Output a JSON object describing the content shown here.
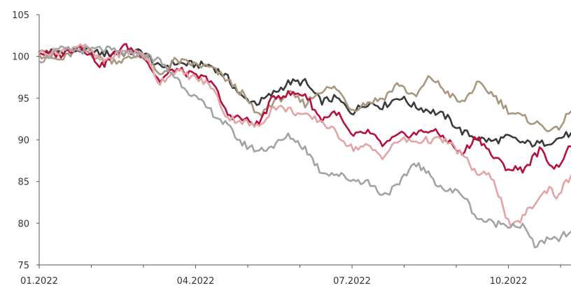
{
  "chart_data": {
    "type": "line",
    "title": "",
    "xlabel": "",
    "ylabel": "",
    "ylim": [
      75,
      105
    ],
    "yticks": [
      75,
      80,
      85,
      90,
      95,
      100,
      105
    ],
    "xticks": [
      {
        "label": "01.2022",
        "x": 0
      },
      {
        "label": "04.2022",
        "x": 3
      },
      {
        "label": "07.2022",
        "x": 6
      },
      {
        "label": "10.2022",
        "x": 9
      }
    ],
    "xminor": [
      1,
      2,
      4,
      5,
      7,
      8,
      10
    ],
    "xlim": [
      0,
      10.2
    ],
    "grid": false,
    "legend": "none",
    "series": [
      {
        "color": "#3a3a3a",
        "x": [
          0,
          0.4,
          0.8,
          1.2,
          1.6,
          2.0,
          2.3,
          2.6,
          3.0,
          3.3,
          3.6,
          3.9,
          4.2,
          4.5,
          4.8,
          5.1,
          5.4,
          5.7,
          6.0,
          6.3,
          6.6,
          6.9,
          7.2,
          7.5,
          7.8,
          8.1,
          8.4,
          8.7,
          9.0,
          9.3,
          9.6,
          9.9,
          10.2
        ],
        "values": [
          100.5,
          100.6,
          100.8,
          100.3,
          100.4,
          100.6,
          98.6,
          99.2,
          99.0,
          98.9,
          97.5,
          95.0,
          94.4,
          95.6,
          96.9,
          96.9,
          94.6,
          95.0,
          93.3,
          94.5,
          94.0,
          95.2,
          94.0,
          93.5,
          92.8,
          91.0,
          90.2,
          89.8,
          90.3,
          89.6,
          89.5,
          90.0,
          90.8
        ]
      },
      {
        "color": "#a8977c",
        "x": [
          0,
          0.4,
          0.8,
          1.2,
          1.6,
          2.0,
          2.3,
          2.6,
          3.0,
          3.3,
          3.6,
          3.9,
          4.2,
          4.5,
          4.8,
          5.1,
          5.4,
          5.7,
          6.0,
          6.3,
          6.6,
          6.9,
          7.2,
          7.5,
          7.8,
          8.1,
          8.4,
          8.7,
          9.0,
          9.3,
          9.6,
          9.9,
          10.2
        ],
        "values": [
          100.2,
          99.5,
          101.0,
          99.6,
          99.5,
          100.3,
          97.6,
          99.5,
          99.0,
          98.6,
          97.2,
          95.5,
          92.8,
          94.6,
          95.5,
          94.3,
          96.0,
          96.2,
          93.6,
          94.5,
          95.0,
          96.8,
          95.0,
          97.6,
          95.8,
          94.3,
          96.7,
          95.5,
          93.5,
          92.6,
          91.8,
          91.0,
          93.4
        ]
      },
      {
        "color": "#b8103e",
        "x": [
          0,
          0.4,
          0.8,
          1.2,
          1.6,
          2.0,
          2.3,
          2.6,
          3.0,
          3.3,
          3.6,
          3.9,
          4.2,
          4.5,
          4.8,
          5.1,
          5.4,
          5.7,
          6.0,
          6.3,
          6.6,
          6.9,
          7.2,
          7.5,
          7.8,
          8.1,
          8.4,
          8.7,
          9.0,
          9.3,
          9.6,
          9.9,
          10.2
        ],
        "values": [
          100.4,
          100.2,
          101.3,
          98.8,
          101.3,
          100.2,
          97.0,
          98.5,
          97.6,
          97.2,
          93.1,
          92.5,
          91.8,
          95.2,
          95.5,
          95.5,
          92.4,
          93.4,
          90.3,
          91.0,
          89.3,
          90.5,
          90.7,
          91.2,
          90.2,
          88.2,
          90.5,
          88.0,
          86.5,
          86.5,
          88.8,
          86.5,
          89.2
        ]
      },
      {
        "color": "#e2a4a4",
        "x": [
          0,
          0.4,
          0.8,
          1.2,
          1.6,
          2.0,
          2.3,
          2.6,
          3.0,
          3.3,
          3.6,
          3.9,
          4.2,
          4.5,
          4.8,
          5.1,
          5.4,
          5.7,
          6.0,
          6.3,
          6.6,
          6.9,
          7.2,
          7.5,
          7.8,
          8.1,
          8.4,
          8.7,
          9.0,
          9.1,
          9.3,
          9.6,
          9.8,
          9.9,
          10.2
        ],
        "values": [
          100.4,
          100.6,
          101.5,
          99.4,
          100.5,
          100.4,
          96.8,
          98.3,
          97.4,
          96.5,
          92.7,
          92.2,
          91.5,
          94.0,
          93.6,
          92.8,
          92.3,
          90.8,
          89.0,
          89.2,
          88.0,
          90.0,
          89.8,
          90.0,
          89.9,
          88.3,
          85.9,
          85.6,
          80.0,
          79.5,
          81.0,
          83.0,
          84.5,
          83.0,
          85.7
        ]
      },
      {
        "color": "#a3a3a6",
        "x": [
          0,
          0.4,
          0.8,
          1.2,
          1.6,
          2.0,
          2.3,
          2.6,
          3.0,
          3.3,
          3.6,
          3.9,
          4.2,
          4.5,
          4.8,
          5.1,
          5.4,
          5.7,
          6.0,
          6.3,
          6.6,
          6.9,
          7.2,
          7.5,
          7.8,
          8.1,
          8.4,
          8.7,
          9.0,
          9.3,
          9.5,
          9.6,
          9.9,
          10.2
        ],
        "values": [
          99.4,
          100.8,
          100.7,
          100.9,
          100.4,
          100.2,
          99.5,
          97.6,
          95.0,
          93.4,
          91.7,
          89.5,
          88.7,
          89.3,
          90.5,
          89.0,
          86.2,
          85.9,
          85.2,
          85.0,
          83.4,
          84.5,
          87.4,
          85.6,
          83.9,
          83.7,
          80.6,
          80.0,
          79.9,
          79.6,
          77.2,
          77.8,
          78.0,
          79.0
        ]
      }
    ]
  }
}
